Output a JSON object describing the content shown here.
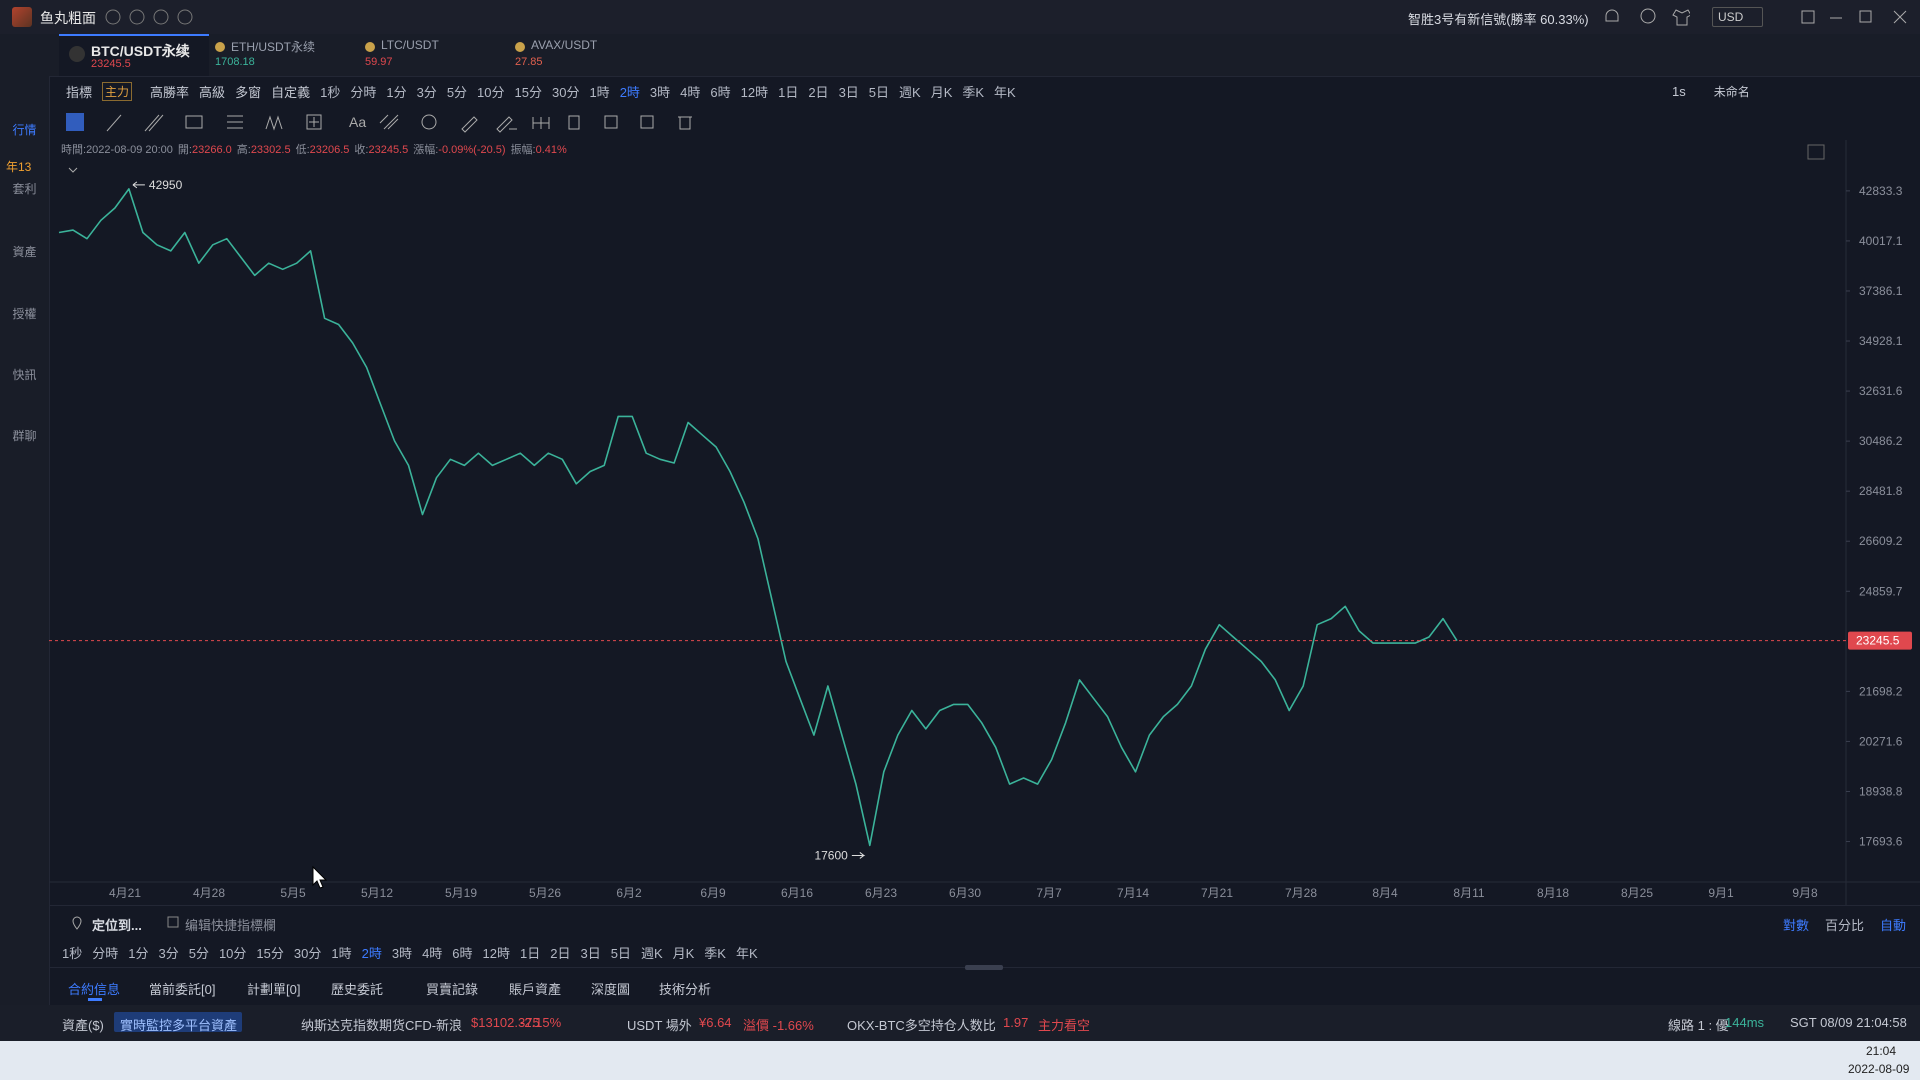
{
  "window": {
    "app_name": "鱼丸粗面",
    "notice": "智胜3号有新信號(勝率 60.33%)",
    "currency": "USD"
  },
  "sidebar": {
    "items": [
      "行情",
      "套利",
      "資產",
      "授權",
      "快訊",
      "群聊"
    ],
    "badge": "年13"
  },
  "tabs": [
    {
      "symbol": "BTC/USDT永续",
      "price": "23245.5"
    },
    {
      "symbol": "ETH/USDT永续",
      "price": "1708.18"
    },
    {
      "symbol": "LTC/USDT",
      "price": "59.97"
    },
    {
      "symbol": "AVAX/USDT",
      "price": "27.85"
    }
  ],
  "toolbar": {
    "indicator": "指標",
    "main": "主力",
    "high_win": "高勝率",
    "advanced": "高級",
    "multi": "多窗",
    "custom": "自定義",
    "timeframes": [
      "1秒",
      "分時",
      "1分",
      "3分",
      "5分",
      "10分",
      "15分",
      "30分",
      "1時",
      "2時",
      "3時",
      "4時",
      "6時",
      "12時",
      "1日",
      "2日",
      "3日",
      "5日",
      "週K",
      "月K",
      "季K",
      "年K"
    ],
    "active_timeframe": "2時",
    "interval": "1s",
    "layout_name": "未命名"
  },
  "drawing_tools": {
    "text_tool": "Aa"
  },
  "ohlc_info": [
    {
      "label": "時間:",
      "value": "2022-08-09 20:00"
    },
    {
      "label": "開:",
      "value": "23266.0"
    },
    {
      "label": "高:",
      "value": "23302.5"
    },
    {
      "label": "低:",
      "value": "23206.5"
    },
    {
      "label": "收:",
      "value": "23245.5"
    },
    {
      "label": "漲幅:",
      "value": "-0.09%(-20.5)"
    },
    {
      "label": "振幅:",
      "value": "0.41%"
    }
  ],
  "chart_data": {
    "type": "line",
    "color": "#3bb39a",
    "log_scale": true,
    "grid": false,
    "values": [
      40475,
      40610,
      40140,
      41155,
      41846,
      42950,
      40475,
      39807,
      39477,
      40475,
      38824,
      39807,
      40140,
      39150,
      38184,
      38824,
      38503,
      38824,
      39477,
      36022,
      35723,
      34841,
      33700,
      32058,
      30496,
      29497,
      27595,
      29010,
      29744,
      29497,
      29992,
      29497,
      29744,
      29992,
      29497,
      29992,
      29744,
      28769,
      29252,
      29497,
      31528,
      31528,
      29992,
      29744,
      29595,
      31267,
      30751,
      30243,
      29252,
      28059,
      26692,
      24559,
      22597,
      21496,
      20448,
      21857,
      20448,
      19131,
      17600,
      19452,
      20448,
      21141,
      20619,
      21141,
      21318,
      21318,
      20792,
      20110,
      19131,
      19290,
      19131,
      19778,
      20792,
      22040,
      21496,
      20966,
      20110,
      19452,
      20448,
      20966,
      21318,
      21857,
      22977,
      23755,
      23362,
      22977,
      22597,
      22040,
      21141,
      21857,
      23755,
      23953,
      24356,
      23558,
      23169,
      23169,
      23169,
      23169,
      23362,
      23953,
      23245.5
    ],
    "ylim": [
      16747,
      44729
    ],
    "yticks": [
      42833.3,
      40017.1,
      37386.1,
      34928.1,
      32631.6,
      30486.2,
      28481.8,
      26609.2,
      24859.7,
      21698.2,
      20271.6,
      18938.8,
      17693.6
    ],
    "x_tick_labels": [
      "4月21",
      "4月28",
      "5月5",
      "5月12",
      "5月19",
      "5月26",
      "6月2",
      "6月9",
      "6月16",
      "6月23",
      "6月30",
      "7月7",
      "7月14",
      "7月21",
      "7月28",
      "8月4",
      "8月11",
      "8月18",
      "8月25",
      "9月1",
      "9月8"
    ],
    "high_label": 42950,
    "low_label": 17600,
    "last_price": 23245.5,
    "last_price_color": "#e0484e"
  },
  "bottom": {
    "locate": "定位到...",
    "edit_shortcut": "编辑快捷指標欄",
    "scale_modes": [
      "對數",
      "百分比",
      "自動"
    ],
    "tabs": [
      "合約信息",
      "當前委託[0]",
      "計劃單[0]",
      "歷史委託",
      "買賣記錄",
      "賬戶資產",
      "深度圖",
      "技術分析"
    ],
    "active_tab": "合約信息"
  },
  "status": {
    "assets": "資產($)",
    "monitor": "實時監控多平台資產",
    "nasdaq": "纳斯达克指数期货CFD-新浪",
    "nasdaq_price": "$13102.375",
    "nasdaq_change": "-2.15%",
    "usdt_otc": "USDT 場外",
    "usdt_price": "¥6.64",
    "premium": "溢價 -1.66%",
    "okx_ratio": "OKX-BTC多空持仓人数比",
    "ratio_value": "1.97",
    "ratio_signal": "主力看空",
    "line": "線路 1 : 優",
    "latency": "144ms",
    "clock": "SGT 08/09 21:04:58"
  },
  "taskbar": {
    "time": "21:04",
    "date": "2022-08-09"
  }
}
